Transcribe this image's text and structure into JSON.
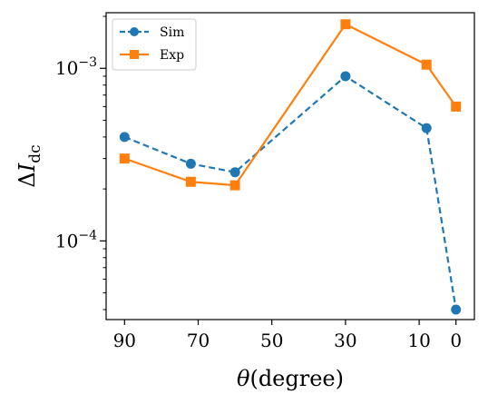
{
  "chart_data": {
    "type": "line",
    "xlabel": "θ(degree)",
    "ylabel": "ΔI_dc",
    "x_scale": "linear",
    "y_scale": "log",
    "xlim": [
      95,
      -5
    ],
    "ylim": [
      3.5e-05,
      0.0021
    ],
    "xticks": [
      90,
      70,
      50,
      30,
      10,
      0
    ],
    "yticks": [
      {
        "value": 0.0001,
        "base": "10",
        "exp": "−4"
      },
      {
        "value": 0.001,
        "base": "10",
        "exp": "−3"
      }
    ],
    "grid": false,
    "legend_position": "top-left",
    "series": [
      {
        "name": "Sim",
        "color": "#1f77b4",
        "line_style": "dashed",
        "marker": "circle",
        "x": [
          90,
          72,
          60,
          30,
          8,
          0
        ],
        "y": [
          0.0004,
          0.00028,
          0.00025,
          0.0009,
          0.00045,
          4e-05
        ]
      },
      {
        "name": "Exp",
        "color": "#ff7f0e",
        "line_style": "solid",
        "marker": "square",
        "x": [
          90,
          72,
          60,
          30,
          8,
          0
        ],
        "y": [
          0.0003,
          0.00022,
          0.00021,
          0.0018,
          0.00105,
          0.0006
        ]
      }
    ]
  }
}
